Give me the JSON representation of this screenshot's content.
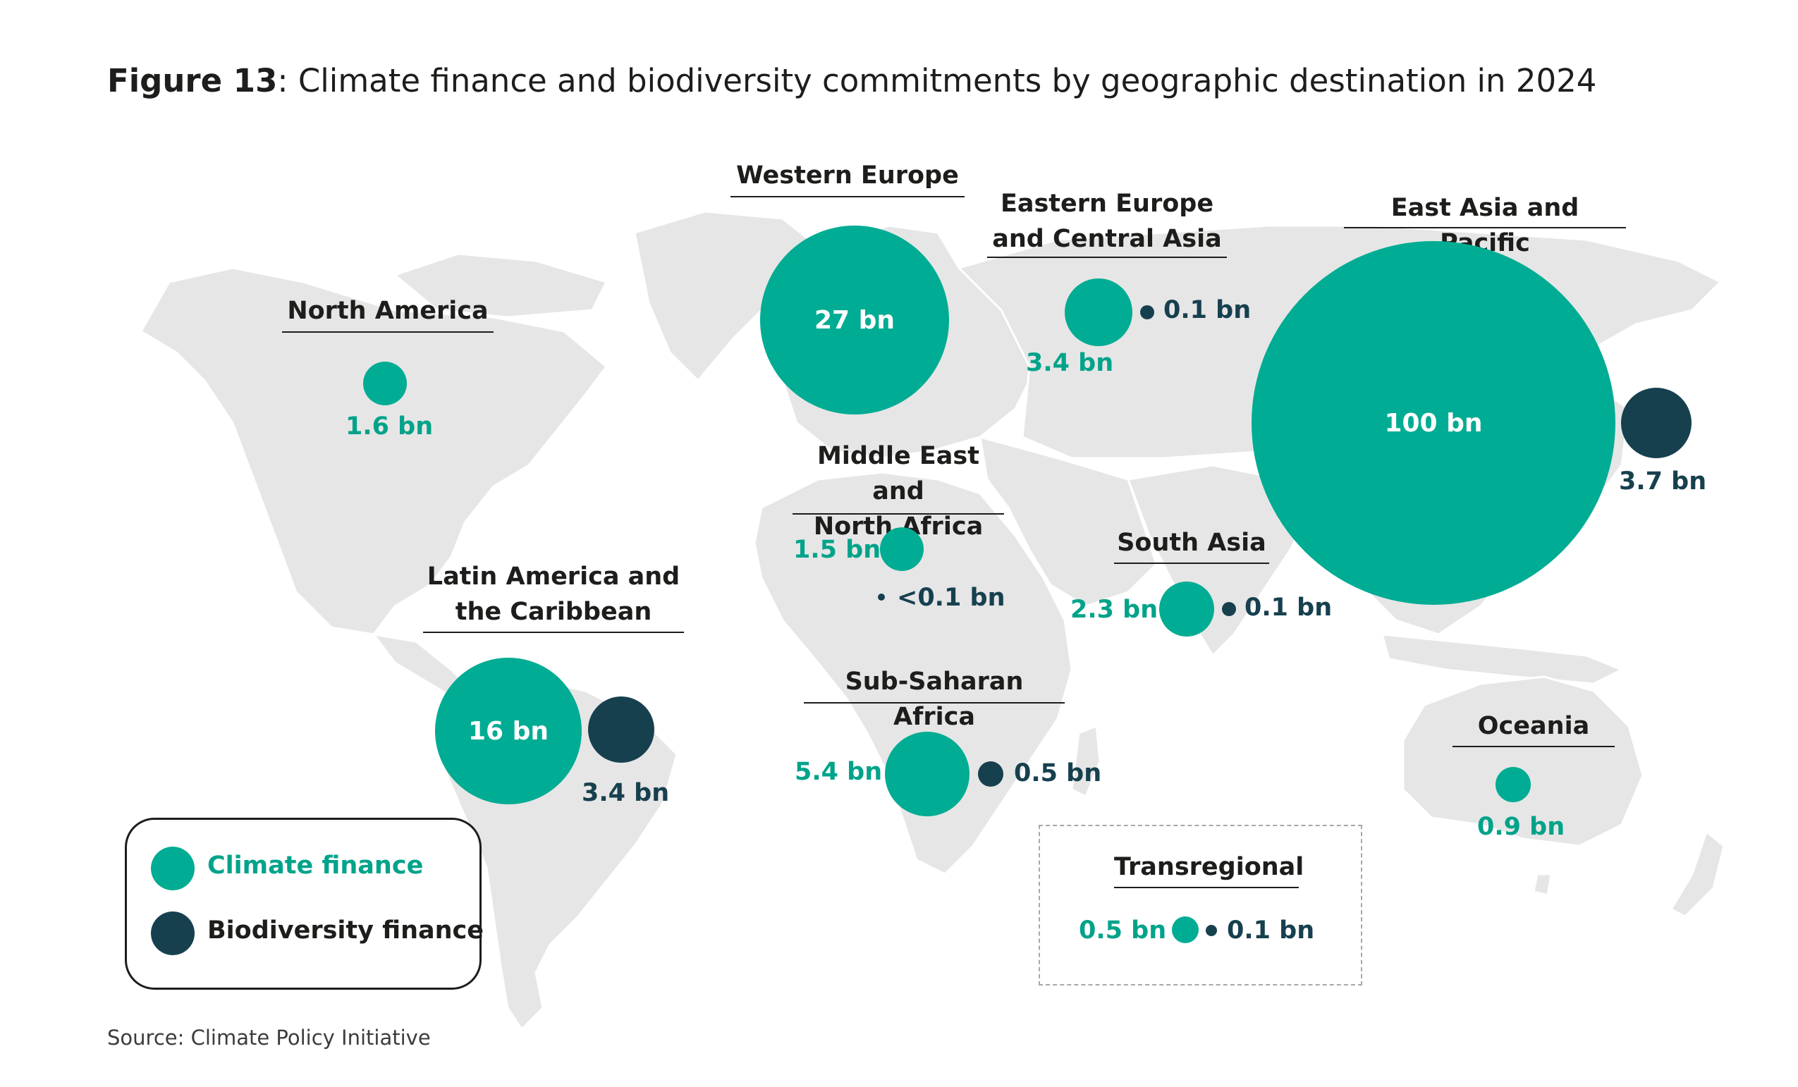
{
  "title": {
    "figure_label": "Figure 13",
    "text": ": Climate finance and biodiversity commitments by geographic destination in 2024"
  },
  "source": "Source: Climate Policy Initiative",
  "colors": {
    "climate": "#00ac93",
    "biodiversity": "#17404f",
    "map_land": "#e6e6e6",
    "label_climate": "#00a38a"
  },
  "legend": {
    "climate_label": "Climate finance",
    "biodiversity_label": "Biodiversity finance"
  },
  "regions": {
    "north_america": {
      "name": "North America",
      "climate": "1.6 bn"
    },
    "latin_america": {
      "name_line1": "Latin America and",
      "name_line2": "the Caribbean",
      "climate": "16 bn",
      "biodiversity": "3.4 bn"
    },
    "western_europe": {
      "name": "Western Europe",
      "climate": "27 bn"
    },
    "eastern_europe": {
      "name_line1": "Eastern Europe",
      "name_line2": "and Central Asia",
      "climate": "3.4 bn",
      "biodiversity": "0.1 bn"
    },
    "mena": {
      "name_line1": "Middle East and",
      "name_line2": "North Africa",
      "climate": "1.5 bn",
      "biodiversity": "<0.1 bn"
    },
    "sub_saharan": {
      "name": "Sub-Saharan Africa",
      "climate": "5.4 bn",
      "biodiversity": "0.5 bn"
    },
    "south_asia": {
      "name": "South Asia",
      "climate": "2.3 bn",
      "biodiversity": "0.1 bn"
    },
    "east_asia": {
      "name": "East Asia and Pacific",
      "climate": "100 bn",
      "biodiversity": "3.7 bn"
    },
    "oceania": {
      "name": "Oceania",
      "climate": "0.9 bn"
    },
    "transregional": {
      "name": "Transregional",
      "climate": "0.5 bn",
      "biodiversity": "0.1 bn"
    }
  }
}
